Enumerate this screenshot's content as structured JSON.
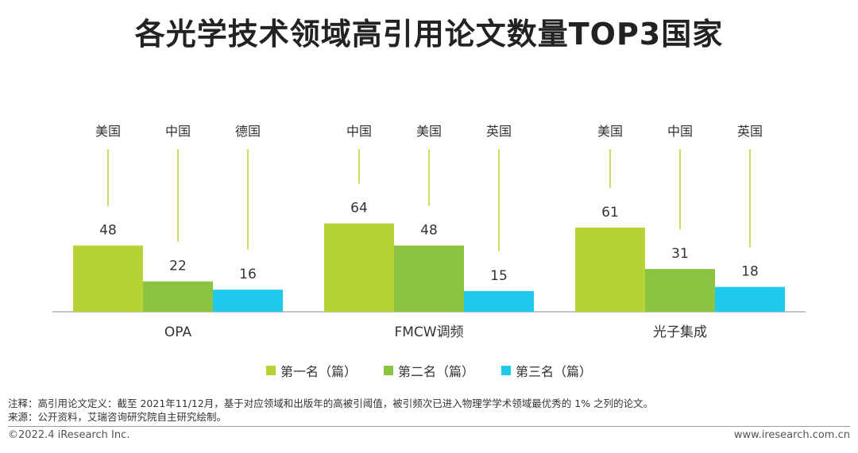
{
  "title": "各光学技术领域高引用论文数量TOP3国家",
  "chart_data": {
    "type": "bar",
    "categories": [
      "OPA",
      "FMCW调频",
      "光子集成"
    ],
    "series": [
      {
        "name": "第一名（篇）",
        "color": "#b5d334",
        "values": [
          48,
          64,
          61
        ],
        "countries": [
          "美国",
          "中国",
          "美国"
        ]
      },
      {
        "name": "第二名（篇）",
        "color": "#8cc441",
        "values": [
          22,
          48,
          31
        ],
        "countries": [
          "中国",
          "美国",
          "中国"
        ]
      },
      {
        "name": "第三名（篇）",
        "color": "#1fc8ed",
        "values": [
          16,
          15,
          18
        ],
        "countries": [
          "德国",
          "英国",
          "英国"
        ]
      }
    ],
    "ylim": [
      0,
      80
    ],
    "grid": false,
    "legend_position": "bottom"
  },
  "notes": {
    "note": "注释：高引用论文定义：截至 2021年11/12月，基于对应领域和出版年的高被引阈值，被引频次已进入物理学学术领域最优秀的 1% 之列的论文。",
    "source": "来源：公开资料，艾瑞咨询研究院自主研究绘制。"
  },
  "footer": {
    "copyright": "©2022.4 iResearch Inc.",
    "website": "www.iresearch.com.cn"
  }
}
